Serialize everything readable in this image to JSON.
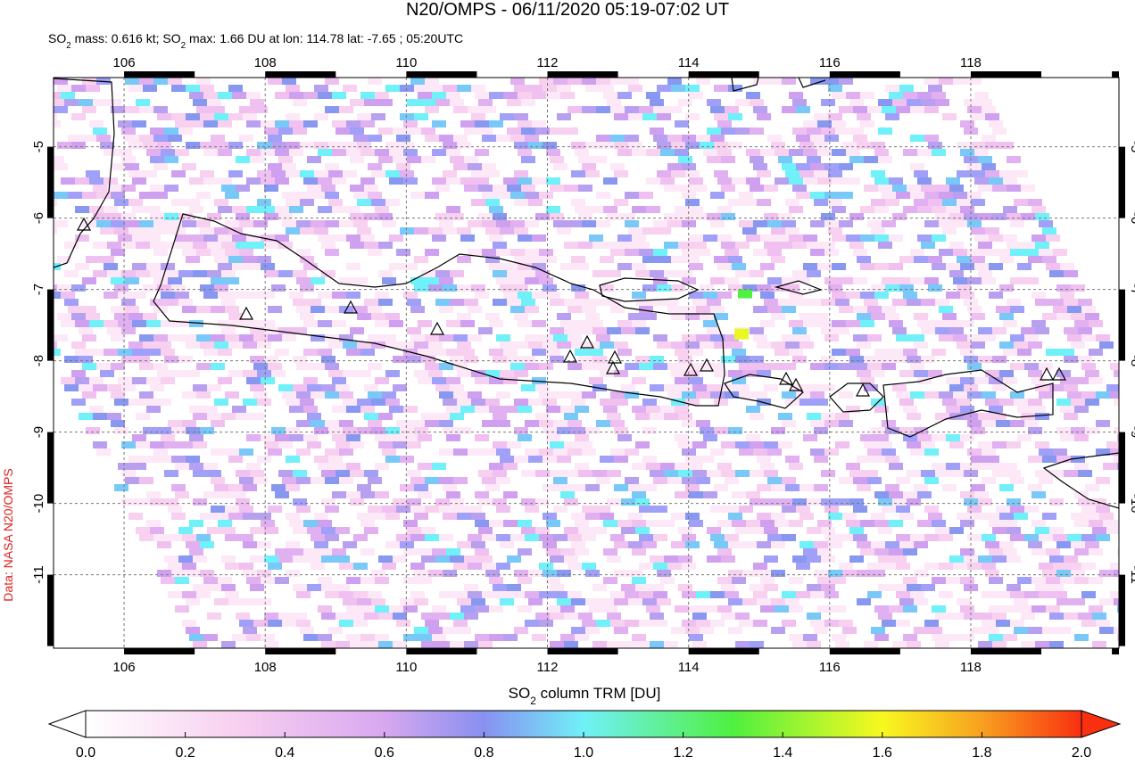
{
  "header": {
    "title": "N20/OMPS - 06/11/2020 05:19-07:02 UT",
    "subtitle": [
      "SO",
      "2",
      " mass: 0.616 kt; SO",
      "2",
      " max: 1.66 DU at lon: 114.78 lat: -7.65 ; 05:20UTC"
    ]
  },
  "map": {
    "lon_range": [
      105,
      120.1
    ],
    "lat_range": [
      -12.03,
      -4.03
    ],
    "lon_ticks": [
      106,
      108,
      110,
      112,
      114,
      116,
      118
    ],
    "lat_ticks": [
      -5,
      -6,
      -7,
      -8,
      -9,
      -10,
      -11
    ]
  },
  "colorbar": {
    "label": [
      "SO",
      "2",
      " column TRM [DU]"
    ],
    "range": [
      0,
      2
    ],
    "ticks": [
      {
        "value": 0,
        "label": "0.0"
      },
      {
        "value": 0.2,
        "label": "0.2"
      },
      {
        "value": 0.4,
        "label": "0.4"
      },
      {
        "value": 0.6,
        "label": "0.6"
      },
      {
        "value": 0.8,
        "label": "0.8"
      },
      {
        "value": 1,
        "label": "1.0"
      },
      {
        "value": 1.2,
        "label": "1.2"
      },
      {
        "value": 1.4,
        "label": "1.4"
      },
      {
        "value": 1.6,
        "label": "1.6"
      },
      {
        "value": 1.8,
        "label": "1.8"
      },
      {
        "value": 2,
        "label": "2.0"
      }
    ]
  },
  "source": "Data: NASA N20/OMPS"
}
